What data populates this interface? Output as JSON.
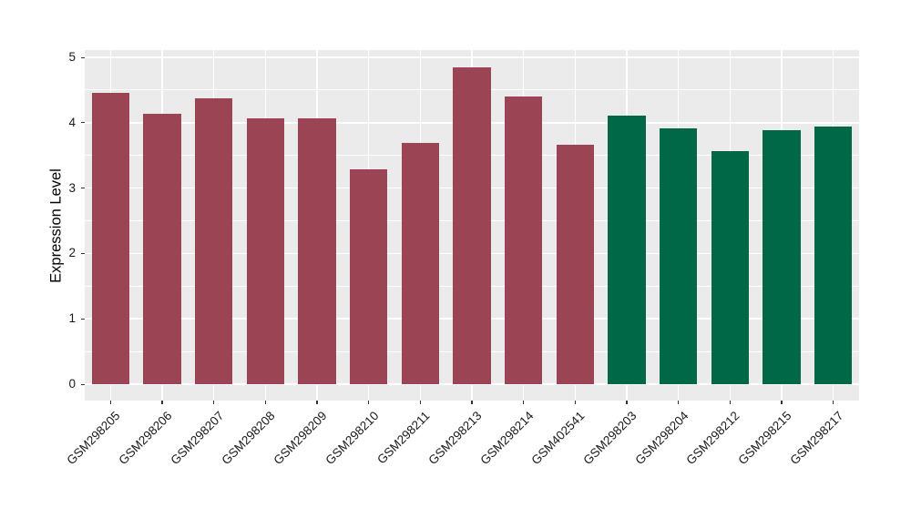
{
  "chart_data": {
    "type": "bar",
    "title": "",
    "xlabel": "",
    "ylabel": "Expression Level",
    "ylim": [
      0,
      5
    ],
    "y_major_ticks": [
      0,
      1,
      2,
      3,
      4,
      5
    ],
    "y_minor_ticks": [
      0.5,
      1.5,
      2.5,
      3.5,
      4.5
    ],
    "grid": "white major and minor horizontal lines, white major vertical lines at category centers, drawn behind bars",
    "legend_position": "none",
    "categories": [
      "GSM298205",
      "GSM298206",
      "GSM298207",
      "GSM298208",
      "GSM298209",
      "GSM298210",
      "GSM298211",
      "GSM298213",
      "GSM298214",
      "GSM402541",
      "GSM298203",
      "GSM298204",
      "GSM298212",
      "GSM298215",
      "GSM298217"
    ],
    "values": [
      4.46,
      4.13,
      4.38,
      4.06,
      4.07,
      3.28,
      3.69,
      4.85,
      4.4,
      3.66,
      4.11,
      3.91,
      3.56,
      3.89,
      3.94
    ],
    "groups": [
      "maroon",
      "maroon",
      "maroon",
      "maroon",
      "maroon",
      "maroon",
      "maroon",
      "maroon",
      "maroon",
      "maroon",
      "green",
      "green",
      "green",
      "green",
      "green"
    ],
    "colors": {
      "maroon": "#9B4453",
      "green": "#006747",
      "panel_background": "#EBEBEB",
      "gridline": "#FFFFFF",
      "tick_mark": "#333333",
      "axis_text": "#1a1a1a",
      "axis_title": "#000000",
      "figure_background": "#FFFFFF"
    }
  }
}
